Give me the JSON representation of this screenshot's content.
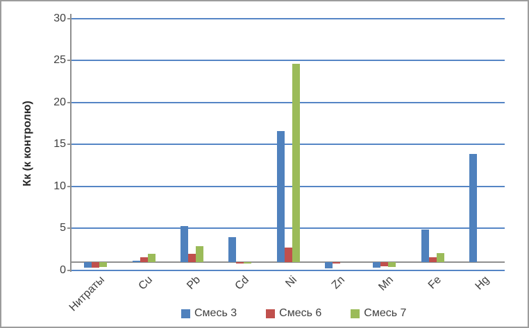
{
  "chart_data": {
    "type": "bar",
    "title": "",
    "ylabel": "Кк (к контролю)",
    "xlabel": "",
    "categories": [
      "Нитраты",
      "Cu",
      "Pb",
      "Cd",
      "Ni",
      "Zn",
      "Mn",
      "Fe",
      "Hg"
    ],
    "series": [
      {
        "name": "Смесь 3",
        "color": "#4F81BD",
        "values": [
          0.3,
          1.2,
          5.3,
          4.0,
          16.6,
          0.25,
          0.3,
          4.9,
          13.9
        ]
      },
      {
        "name": "Смесь 6",
        "color": "#C0504D",
        "values": [
          0.35,
          1.6,
          2.0,
          0.8,
          2.7,
          0.85,
          0.5,
          1.6,
          1.0
        ]
      },
      {
        "name": "Смесь 7",
        "color": "#9BBB59",
        "values": [
          0.45,
          1.95,
          2.9,
          0.8,
          24.6,
          1.0,
          0.4,
          2.05,
          1.0
        ]
      }
    ],
    "ylim": [
      0,
      30
    ],
    "yticks": [
      0,
      5,
      10,
      15,
      20,
      25,
      30
    ],
    "bar_baseline": 1,
    "grid": true,
    "legend_position": "bottom",
    "colors": {
      "gridline": "#5585C5",
      "axis": "#8F8F8F",
      "text": "#3F3F3F",
      "border": "#9C9C9C",
      "background": "#FFFFFF"
    }
  }
}
